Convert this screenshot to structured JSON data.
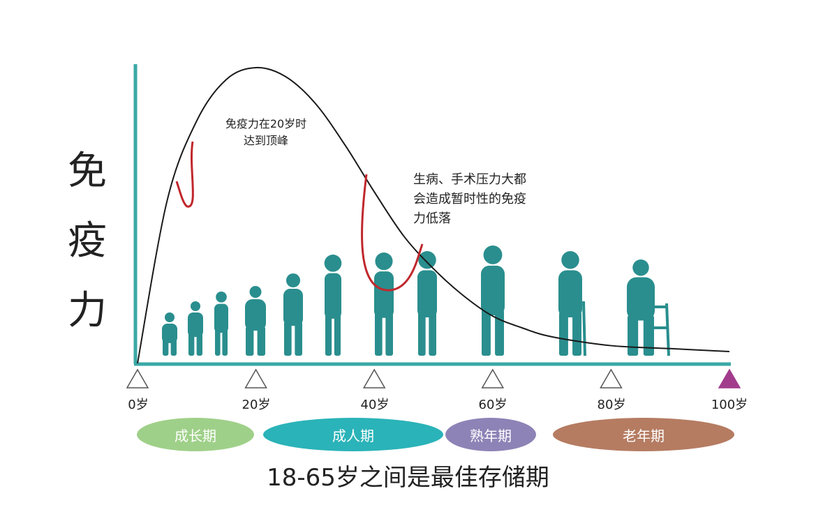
{
  "chart_data": {
    "type": "line",
    "ylabel_chars": [
      "免",
      "疫",
      "力"
    ],
    "x_ticks": [
      0,
      20,
      40,
      60,
      80,
      100
    ],
    "x_tick_labels": [
      "0岁",
      "20岁",
      "40岁",
      "60岁",
      "80岁",
      "100岁"
    ],
    "xlim": [
      0,
      100
    ],
    "ylim": [
      0,
      100
    ],
    "series": [
      {
        "values": [
          {
            "x": 0,
            "y": 0
          },
          {
            "x": 5,
            "y": 55
          },
          {
            "x": 10,
            "y": 82
          },
          {
            "x": 15,
            "y": 96
          },
          {
            "x": 20,
            "y": 100
          },
          {
            "x": 25,
            "y": 97
          },
          {
            "x": 30,
            "y": 88
          },
          {
            "x": 35,
            "y": 74
          },
          {
            "x": 40,
            "y": 58
          },
          {
            "x": 45,
            "y": 43
          },
          {
            "x": 50,
            "y": 32
          },
          {
            "x": 55,
            "y": 23
          },
          {
            "x": 60,
            "y": 16
          },
          {
            "x": 65,
            "y": 12
          },
          {
            "x": 70,
            "y": 9
          },
          {
            "x": 80,
            "y": 6
          },
          {
            "x": 90,
            "y": 5
          },
          {
            "x": 100,
            "y": 4
          }
        ]
      }
    ],
    "annotations": [
      {
        "lines": [
          "免疫力在20岁时",
          "达到顶峰"
        ]
      },
      {
        "lines": [
          "生病、手术压力大都",
          "会造成暂时性的免疫",
          "力低落"
        ]
      }
    ],
    "stages": [
      {
        "label": "成长期",
        "color": "#9fd089"
      },
      {
        "label": "成人期",
        "color": "#2ab3b8"
      },
      {
        "label": "熟年期",
        "color": "#8e83b6"
      },
      {
        "label": "老年期",
        "color": "#b57c62"
      }
    ],
    "footer": "18-65岁之间是最佳存储期",
    "colors": {
      "axis": "#3aa8a6",
      "curve": "#1a1a1a",
      "dip": "#c0282d",
      "silhouette": "#2a8e8e",
      "end_marker": "#a23b8c"
    }
  }
}
